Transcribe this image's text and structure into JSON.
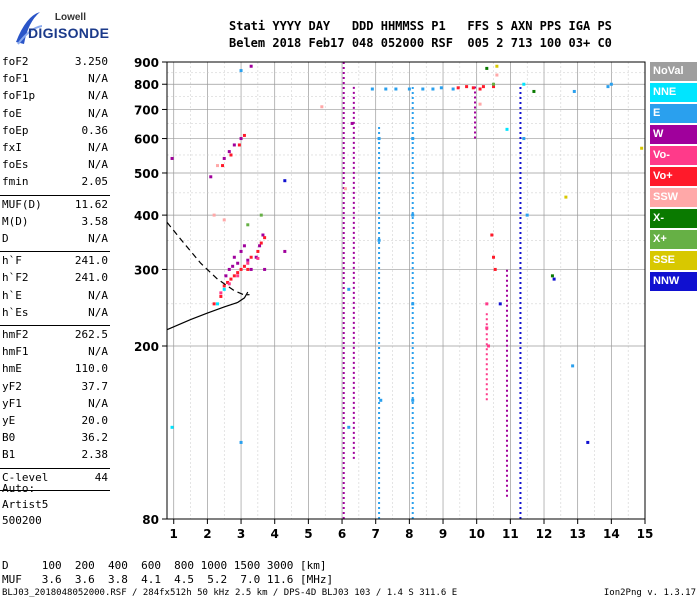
{
  "logo": {
    "brand": "Lowell",
    "name": "DIGISONDE"
  },
  "header": {
    "labels": "Stati YYYY DAY   DDD HHMMSS P1   FFS S AXN PPS IGA PS",
    "values": "Belem 2018 Feb17 048 052000 RSF  005 2 713 100 03+ C0"
  },
  "params": [
    {
      "k": "foF2",
      "v": "3.250"
    },
    {
      "k": "foF1",
      "v": "N/A"
    },
    {
      "k": "foF1p",
      "v": "N/A"
    },
    {
      "k": "foE",
      "v": "N/A"
    },
    {
      "k": "foEp",
      "v": "0.36"
    },
    {
      "k": "fxI",
      "v": "N/A"
    },
    {
      "k": "foEs",
      "v": "N/A"
    },
    {
      "k": "fmin",
      "v": "2.05"
    },
    {
      "k": "MUF(D)",
      "v": "11.62"
    },
    {
      "k": "M(D)",
      "v": "3.58"
    },
    {
      "k": "D",
      "v": "N/A"
    },
    {
      "k": "h`F",
      "v": "241.0"
    },
    {
      "k": "h`F2",
      "v": "241.0"
    },
    {
      "k": "h`E",
      "v": "N/A"
    },
    {
      "k": "h`Es",
      "v": "N/A"
    },
    {
      "k": "hmF2",
      "v": "262.5"
    },
    {
      "k": "hmF1",
      "v": "N/A"
    },
    {
      "k": "hmE",
      "v": "110.0"
    },
    {
      "k": "yF2",
      "v": "37.7"
    },
    {
      "k": "yF1",
      "v": "N/A"
    },
    {
      "k": "yE",
      "v": "20.0"
    },
    {
      "k": "B0",
      "v": "36.2"
    },
    {
      "k": "B1",
      "v": "2.38"
    },
    {
      "k": "C-level",
      "v": "44"
    }
  ],
  "config": {
    "line1": "Auto:",
    "line2": "Artist5",
    "line3": "500200"
  },
  "legend": [
    {
      "label": "NoVal",
      "color": "#9e9e9e"
    },
    {
      "label": "NNE",
      "color": "#00e5ff"
    },
    {
      "label": "E",
      "color": "#2aa0ee"
    },
    {
      "label": "W",
      "color": "#a0009c"
    },
    {
      "label": "Vo-",
      "color": "#ff3a8a"
    },
    {
      "label": "Vo+",
      "color": "#ff1a2a"
    },
    {
      "label": "SSW",
      "color": "#ffa8a8"
    },
    {
      "label": "X-",
      "color": "#0a7a00"
    },
    {
      "label": "X+",
      "color": "#66b045"
    },
    {
      "label": "SSE",
      "color": "#d8c800"
    },
    {
      "label": "NNW",
      "color": "#1010d0"
    }
  ],
  "bottom": {
    "d_row": "D     100  200  400  600  800 1000 1500 3000 [km]",
    "muf_row": "MUF   3.6  3.6  3.8  4.1  4.5  5.2  7.0 11.6 [MHz]"
  },
  "footer": {
    "text": "BLJ03_2018048052000.RSF / 284fx512h 50 kHz 2.5 km / DPS-4D BLJ03 103 / 1.4 S 311.6 E",
    "version": "Ion2Png v. 1.3.17"
  },
  "chart_data": {
    "type": "scatter",
    "x_ticks": [
      "1",
      "2",
      "3",
      "4",
      "5",
      "6",
      "7",
      "8",
      "9",
      "10",
      "11",
      "12",
      "13",
      "14",
      "15"
    ],
    "y_ticks": [
      "80",
      "200",
      "300",
      "400",
      "500",
      "600",
      "700",
      "800",
      "900"
    ],
    "xlim": [
      0.8,
      15.0
    ],
    "ylim": [
      80,
      900
    ],
    "y_scale": "log",
    "grid": true,
    "series": [
      {
        "color": "W",
        "points": [
          [
            2.55,
            290
          ],
          [
            2.65,
            300
          ],
          [
            2.75,
            305
          ],
          [
            2.8,
            320
          ],
          [
            2.9,
            310
          ],
          [
            3.0,
            330
          ],
          [
            3.1,
            340
          ],
          [
            3.2,
            315
          ],
          [
            3.3,
            300
          ],
          [
            3.45,
            320
          ],
          [
            3.55,
            340
          ],
          [
            3.65,
            360
          ],
          [
            3.7,
            300
          ],
          [
            4.3,
            330
          ],
          [
            2.1,
            490
          ],
          [
            2.5,
            540
          ],
          [
            2.65,
            560
          ],
          [
            2.8,
            580
          ],
          [
            3.0,
            600
          ],
          [
            6.3,
            650
          ],
          [
            0.95,
            540
          ],
          [
            3.3,
            880
          ]
        ]
      },
      {
        "color": "Vo+",
        "points": [
          [
            2.2,
            250
          ],
          [
            2.4,
            260
          ],
          [
            2.5,
            275
          ],
          [
            2.6,
            280
          ],
          [
            2.7,
            285
          ],
          [
            2.8,
            290
          ],
          [
            2.9,
            295
          ],
          [
            3.0,
            300
          ],
          [
            3.1,
            305
          ],
          [
            3.2,
            300
          ],
          [
            3.3,
            320
          ],
          [
            3.5,
            330
          ],
          [
            3.6,
            345
          ],
          [
            3.7,
            355
          ],
          [
            2.45,
            520
          ],
          [
            2.7,
            550
          ],
          [
            2.95,
            580
          ],
          [
            3.1,
            610
          ],
          [
            9.45,
            785
          ],
          [
            9.7,
            790
          ],
          [
            9.9,
            785
          ],
          [
            10.1,
            780
          ],
          [
            10.2,
            790
          ],
          [
            10.5,
            790
          ],
          [
            10.45,
            360
          ],
          [
            10.5,
            320
          ],
          [
            10.55,
            300
          ]
        ]
      },
      {
        "color": "Vo-",
        "points": [
          [
            2.4,
            265
          ],
          [
            2.65,
            278
          ],
          [
            2.9,
            290
          ],
          [
            3.2,
            310
          ],
          [
            3.5,
            318
          ],
          [
            10.3,
            250
          ],
          [
            10.3,
            220
          ],
          [
            10.35,
            200
          ]
        ]
      },
      {
        "color": "E",
        "points": [
          [
            6.9,
            780
          ],
          [
            7.3,
            780
          ],
          [
            7.6,
            780
          ],
          [
            8.0,
            780
          ],
          [
            8.4,
            780
          ],
          [
            8.7,
            780
          ],
          [
            8.95,
            785
          ],
          [
            9.3,
            780
          ],
          [
            8.1,
            600
          ],
          [
            8.1,
            400
          ],
          [
            8.1,
            250
          ],
          [
            8.1,
            150
          ],
          [
            7.1,
            600
          ],
          [
            7.1,
            350
          ],
          [
            7.15,
            150
          ],
          [
            6.2,
            270
          ],
          [
            6.2,
            130
          ],
          [
            11.4,
            600
          ],
          [
            11.5,
            400
          ],
          [
            12.85,
            180
          ],
          [
            12.9,
            770
          ],
          [
            13.9,
            790
          ],
          [
            14.0,
            800
          ],
          [
            3.0,
            860
          ],
          [
            3.0,
            120
          ]
        ]
      },
      {
        "color": "NNE",
        "points": [
          [
            2.3,
            250
          ],
          [
            2.5,
            270
          ],
          [
            11.4,
            800
          ],
          [
            10.9,
            630
          ],
          [
            0.95,
            130
          ]
        ]
      },
      {
        "color": "SSW",
        "points": [
          [
            2.2,
            400
          ],
          [
            2.5,
            390
          ],
          [
            2.3,
            520
          ],
          [
            5.4,
            710
          ],
          [
            6.1,
            460
          ],
          [
            10.1,
            720
          ],
          [
            10.6,
            840
          ]
        ]
      },
      {
        "color": "X-",
        "points": [
          [
            10.3,
            870
          ],
          [
            11.7,
            770
          ],
          [
            12.25,
            290
          ]
        ]
      },
      {
        "color": "X+",
        "points": [
          [
            3.2,
            380
          ],
          [
            3.6,
            400
          ],
          [
            10.5,
            800
          ]
        ]
      },
      {
        "color": "SSE",
        "points": [
          [
            12.65,
            440
          ],
          [
            14.9,
            570
          ],
          [
            10.6,
            880
          ]
        ]
      },
      {
        "color": "NNW",
        "points": [
          [
            4.3,
            480
          ],
          [
            12.3,
            285
          ],
          [
            10.7,
            250
          ],
          [
            13.3,
            120
          ]
        ]
      }
    ],
    "columns": [
      {
        "x": 6.05,
        "from": 80,
        "to": 900,
        "color": "W"
      },
      {
        "x": 6.35,
        "from": 110,
        "to": 800,
        "color": "W"
      },
      {
        "x": 7.1,
        "from": 80,
        "to": 640,
        "color": "E"
      },
      {
        "x": 8.1,
        "from": 80,
        "to": 800,
        "color": "E"
      },
      {
        "x": 11.3,
        "from": 80,
        "to": 800,
        "color": "NNW"
      },
      {
        "x": 10.3,
        "from": 150,
        "to": 240,
        "color": "Vo-"
      },
      {
        "x": 9.95,
        "from": 600,
        "to": 800,
        "color": "W"
      },
      {
        "x": 10.9,
        "from": 90,
        "to": 300,
        "color": "W"
      }
    ],
    "virtual_height_curve": [
      [
        0.8,
        218
      ],
      [
        1.5,
        230
      ],
      [
        2.0,
        238
      ],
      [
        2.5,
        246
      ],
      [
        2.9,
        252
      ],
      [
        3.1,
        258
      ],
      [
        3.2,
        266
      ]
    ],
    "ordinary_trace": [
      [
        0.8,
        385
      ],
      [
        1.3,
        345
      ],
      [
        1.8,
        310
      ],
      [
        2.3,
        285
      ],
      [
        2.8,
        268
      ],
      [
        3.1,
        262
      ],
      [
        3.25,
        262.5
      ]
    ]
  }
}
